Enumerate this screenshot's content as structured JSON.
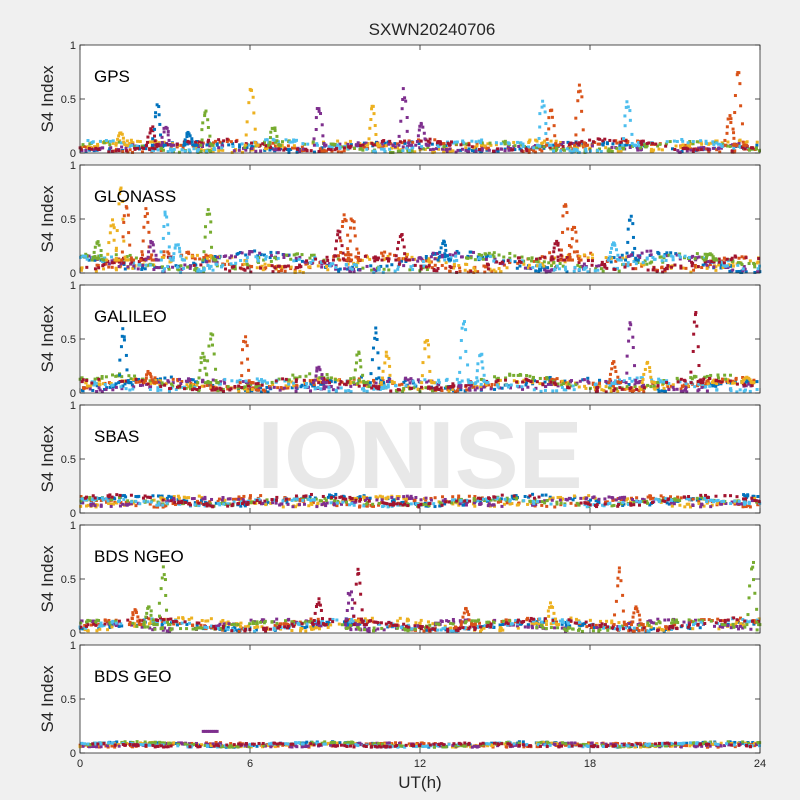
{
  "figure": {
    "title": "SXWN20240706",
    "xlabel": "UT(h)",
    "watermark": "IONISE"
  },
  "colors": {
    "background": "#f0f0f0",
    "axes": "#ffffff",
    "axis_line": "#262626",
    "series": [
      "#0072bd",
      "#d95319",
      "#edb120",
      "#7e2f8e",
      "#77ac30",
      "#4dbeee",
      "#a2142f"
    ]
  },
  "chart_data": [
    {
      "type": "scatter",
      "label": "GPS",
      "ylabel": "S4 Index",
      "xlim": [
        0,
        24
      ],
      "ylim": [
        0,
        1
      ],
      "xticks": [
        "0",
        "6",
        "12",
        "18",
        "24"
      ],
      "yticks": [
        "0",
        "0.5",
        "1"
      ],
      "grid": false,
      "baseline": {
        "min": 0.02,
        "max": 0.12
      },
      "spikes": [
        {
          "x": 1.6,
          "peak": 0.2,
          "series": 2
        },
        {
          "x": 2.7,
          "peak": 0.25,
          "series": 6
        },
        {
          "x": 2.9,
          "peak": 0.45,
          "series": 0
        },
        {
          "x": 3.2,
          "peak": 0.25,
          "series": 3
        },
        {
          "x": 4.0,
          "peak": 0.2,
          "series": 0
        },
        {
          "x": 4.6,
          "peak": 0.42,
          "series": 4
        },
        {
          "x": 6.2,
          "peak": 0.66,
          "series": 2
        },
        {
          "x": 7.0,
          "peak": 0.25,
          "series": 4
        },
        {
          "x": 8.6,
          "peak": 0.45,
          "series": 3
        },
        {
          "x": 10.5,
          "peak": 0.45,
          "series": 2
        },
        {
          "x": 11.6,
          "peak": 0.6,
          "series": 3
        },
        {
          "x": 12.2,
          "peak": 0.3,
          "series": 3
        },
        {
          "x": 16.5,
          "peak": 0.5,
          "series": 5
        },
        {
          "x": 16.8,
          "peak": 0.45,
          "series": 1
        },
        {
          "x": 17.8,
          "peak": 0.67,
          "series": 1
        },
        {
          "x": 19.5,
          "peak": 0.5,
          "series": 5
        },
        {
          "x": 23.1,
          "peak": 0.35,
          "series": 1
        },
        {
          "x": 23.4,
          "peak": 0.83,
          "series": 1
        }
      ]
    },
    {
      "type": "scatter",
      "label": "GLONASS",
      "ylabel": "S4 Index",
      "xlim": [
        0,
        24
      ],
      "ylim": [
        0,
        1
      ],
      "xticks": [
        "0",
        "6",
        "12",
        "18",
        "24"
      ],
      "yticks": [
        "0",
        "0.5",
        "1"
      ],
      "grid": false,
      "baseline": {
        "min": 0.03,
        "max": 0.2
      },
      "spikes": [
        {
          "x": 0.8,
          "peak": 0.3,
          "series": 4
        },
        {
          "x": 1.3,
          "peak": 0.5,
          "series": 2
        },
        {
          "x": 1.6,
          "peak": 0.87,
          "series": 2
        },
        {
          "x": 1.8,
          "peak": 0.65,
          "series": 1
        },
        {
          "x": 2.5,
          "peak": 0.6,
          "series": 1
        },
        {
          "x": 2.7,
          "peak": 0.3,
          "series": 3
        },
        {
          "x": 3.2,
          "peak": 0.6,
          "series": 5
        },
        {
          "x": 3.6,
          "peak": 0.28,
          "series": 5
        },
        {
          "x": 4.7,
          "peak": 0.62,
          "series": 4
        },
        {
          "x": 9.3,
          "peak": 0.4,
          "series": 6
        },
        {
          "x": 9.5,
          "peak": 0.58,
          "series": 1
        },
        {
          "x": 9.8,
          "peak": 0.55,
          "series": 1
        },
        {
          "x": 11.5,
          "peak": 0.38,
          "series": 6
        },
        {
          "x": 13.0,
          "peak": 0.3,
          "series": 0
        },
        {
          "x": 17.0,
          "peak": 0.3,
          "series": 6
        },
        {
          "x": 17.3,
          "peak": 0.72,
          "series": 1
        },
        {
          "x": 17.6,
          "peak": 0.45,
          "series": 1
        },
        {
          "x": 19.0,
          "peak": 0.3,
          "series": 5
        },
        {
          "x": 19.6,
          "peak": 0.55,
          "series": 0
        },
        {
          "x": 22.4,
          "peak": 0.18,
          "series": 4
        }
      ]
    },
    {
      "type": "scatter",
      "label": "GALILEO",
      "ylabel": "S4 Index",
      "xlim": [
        0,
        24
      ],
      "ylim": [
        0,
        1
      ],
      "xticks": [
        "0",
        "6",
        "12",
        "18",
        "24"
      ],
      "yticks": [
        "0",
        "0.5",
        "1"
      ],
      "grid": false,
      "baseline": {
        "min": 0.03,
        "max": 0.16
      },
      "spikes": [
        {
          "x": 1.7,
          "peak": 0.6,
          "series": 0
        },
        {
          "x": 2.6,
          "peak": 0.2,
          "series": 1
        },
        {
          "x": 4.5,
          "peak": 0.38,
          "series": 4
        },
        {
          "x": 4.8,
          "peak": 0.6,
          "series": 4
        },
        {
          "x": 6.0,
          "peak": 0.55,
          "series": 1
        },
        {
          "x": 8.6,
          "peak": 0.25,
          "series": 3
        },
        {
          "x": 10.0,
          "peak": 0.38,
          "series": 4
        },
        {
          "x": 10.6,
          "peak": 0.62,
          "series": 0
        },
        {
          "x": 11.0,
          "peak": 0.38,
          "series": 2
        },
        {
          "x": 12.4,
          "peak": 0.55,
          "series": 2
        },
        {
          "x": 13.7,
          "peak": 0.72,
          "series": 5
        },
        {
          "x": 14.3,
          "peak": 0.38,
          "series": 5
        },
        {
          "x": 19.0,
          "peak": 0.3,
          "series": 1
        },
        {
          "x": 19.6,
          "peak": 0.7,
          "series": 3
        },
        {
          "x": 20.2,
          "peak": 0.3,
          "series": 2
        },
        {
          "x": 21.9,
          "peak": 0.8,
          "series": 6
        },
        {
          "x": 23.7,
          "peak": 0.15,
          "series": 2
        }
      ]
    },
    {
      "type": "scatter",
      "label": "SBAS",
      "ylabel": "S4 Index",
      "xlim": [
        0,
        24
      ],
      "ylim": [
        0,
        1
      ],
      "xticks": [
        "0",
        "6",
        "12",
        "18",
        "24"
      ],
      "yticks": [
        "0",
        "0.5",
        "1"
      ],
      "grid": false,
      "baseline": {
        "min": 0.07,
        "max": 0.16
      },
      "spikes": []
    },
    {
      "type": "scatter",
      "label": "BDS NGEO",
      "ylabel": "S4 Index",
      "xlim": [
        0,
        24
      ],
      "ylim": [
        0,
        1
      ],
      "xticks": [
        "0",
        "6",
        "12",
        "18",
        "24"
      ],
      "yticks": [
        "0",
        "0.5",
        "1"
      ],
      "grid": false,
      "baseline": {
        "min": 0.03,
        "max": 0.13
      },
      "spikes": [
        {
          "x": 2.1,
          "peak": 0.22,
          "series": 1
        },
        {
          "x": 2.6,
          "peak": 0.25,
          "series": 4
        },
        {
          "x": 3.1,
          "peak": 0.62,
          "series": 4
        },
        {
          "x": 8.6,
          "peak": 0.32,
          "series": 6
        },
        {
          "x": 9.7,
          "peak": 0.4,
          "series": 3
        },
        {
          "x": 10.0,
          "peak": 0.62,
          "series": 6
        },
        {
          "x": 13.8,
          "peak": 0.25,
          "series": 1
        },
        {
          "x": 16.8,
          "peak": 0.28,
          "series": 2
        },
        {
          "x": 19.2,
          "peak": 0.63,
          "series": 1
        },
        {
          "x": 19.8,
          "peak": 0.25,
          "series": 1
        },
        {
          "x": 23.9,
          "peak": 0.68,
          "series": 4
        }
      ]
    },
    {
      "type": "scatter",
      "label": "BDS GEO",
      "ylabel": "S4 Index",
      "xlim": [
        0,
        24
      ],
      "ylim": [
        0,
        1
      ],
      "xticks": [
        "0",
        "6",
        "12",
        "18",
        "24"
      ],
      "yticks": [
        "0",
        "0.5",
        "1"
      ],
      "grid": false,
      "baseline": {
        "min": 0.06,
        "max": 0.1
      },
      "spikes": [
        {
          "x": 4.6,
          "peak": 0.2,
          "series": 3,
          "flat": true
        }
      ]
    }
  ]
}
